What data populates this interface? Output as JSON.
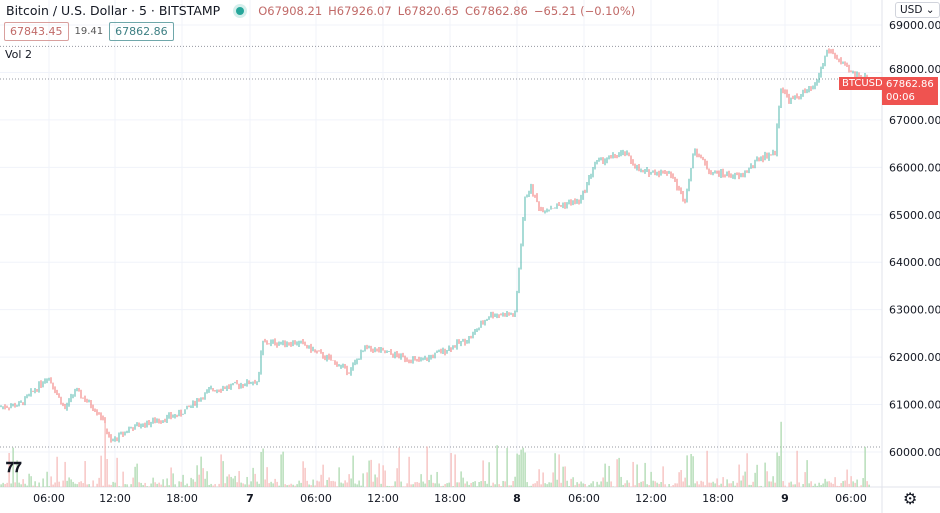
{
  "header": {
    "title": "Bitcoin / U.S. Dollar · 5 · BITSTAMP",
    "open": "O67908.21",
    "high": "H67926.07",
    "low": "L67820.65",
    "close": "C67862.86",
    "change": "−65.21 (−0.10%)",
    "bid": "67843.45",
    "spread": "19.41",
    "ask": "67862.86",
    "vol_label": "Vol  2"
  },
  "price_axis": {
    "currency": "USD",
    "ticks": [
      "69000.00",
      "68000.00",
      "67000.00",
      "66000.00",
      "65000.00",
      "64000.00",
      "63000.00",
      "62000.00",
      "61000.00",
      "60000.00"
    ],
    "symbol_tag": "BTCUSD",
    "last_price": "67862.86",
    "countdown": "00:06"
  },
  "time_axis": {
    "ticks": [
      "06:00",
      "12:00",
      "18:00",
      "7",
      "06:00",
      "12:00",
      "18:00",
      "8",
      "06:00",
      "12:00",
      "18:00",
      "9",
      "06:00"
    ]
  },
  "logo": "TV",
  "colors": {
    "up": "#26a69a",
    "down": "#ef5350",
    "last_price": "#ef5350"
  },
  "chart_data": {
    "type": "candlestick",
    "interval": "5",
    "ylim": [
      59800,
      69200
    ],
    "approx_close_path": [
      [
        "6 01:35",
        60950
      ],
      [
        "6 03:25",
        61000
      ],
      [
        "6 05:55",
        61600
      ],
      [
        "6 07:25",
        60900
      ],
      [
        "6 08:20",
        61300
      ],
      [
        "6 10:35",
        60800
      ],
      [
        "6 11:30",
        60200
      ],
      [
        "6 13:15",
        60500
      ],
      [
        "6 17:45",
        60800
      ],
      [
        "6 20:25",
        61300
      ],
      [
        "7 00:45",
        61500
      ],
      [
        "7 01:05",
        62300
      ],
      [
        "7 04:30",
        62300
      ],
      [
        "7 08:55",
        61700
      ],
      [
        "7 10:20",
        62200
      ],
      [
        "7 15:15",
        61900
      ],
      [
        "7 19:40",
        62400
      ],
      [
        "7 21:30",
        62900
      ],
      [
        "7 23:45",
        62900
      ],
      [
        "8 00:35",
        65300
      ],
      [
        "8 01:05",
        65600
      ],
      [
        "8 02:00",
        65100
      ],
      [
        "8 05:35",
        65300
      ],
      [
        "8 06:55",
        66100
      ],
      [
        "8 09:35",
        66300
      ],
      [
        "8 10:55",
        65900
      ],
      [
        "8 13:35",
        65900
      ],
      [
        "8 14:55",
        65300
      ],
      [
        "8 15:50",
        66400
      ],
      [
        "8 17:10",
        65900
      ],
      [
        "8 19:55",
        65800
      ],
      [
        "8 21:40",
        66200
      ],
      [
        "8 23:00",
        66300
      ],
      [
        "8 23:30",
        67700
      ],
      [
        "9 00:20",
        67400
      ],
      [
        "9 02:35",
        67700
      ],
      [
        "9 03:45",
        68500
      ],
      [
        "9 05:45",
        68000
      ],
      [
        "9 07:30",
        67862.86
      ]
    ],
    "last_ohlc": {
      "open": 67908.21,
      "high": 67926.07,
      "low": 67820.65,
      "close": 67862.86
    }
  }
}
